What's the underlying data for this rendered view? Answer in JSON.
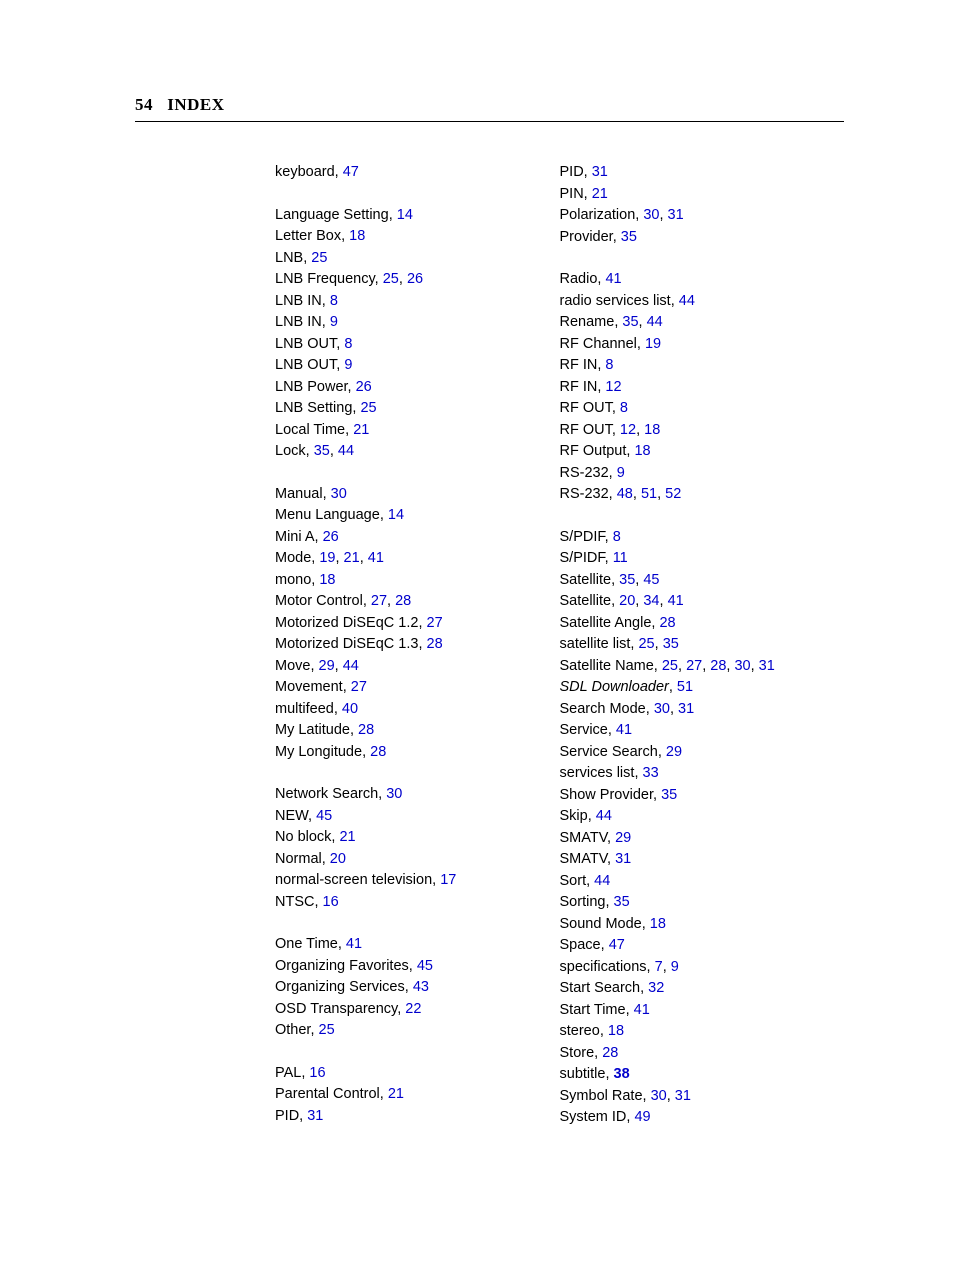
{
  "header": {
    "page_number": "54",
    "title": "INDEX"
  },
  "left_groups": [
    [
      {
        "term": "keyboard",
        "refs": [
          "47"
        ]
      }
    ],
    [
      {
        "term": "Language Setting",
        "refs": [
          "14"
        ]
      },
      {
        "term": "Letter Box",
        "refs": [
          "18"
        ]
      },
      {
        "term": "LNB",
        "refs": [
          "25"
        ]
      },
      {
        "term": "LNB Frequency",
        "refs": [
          "25",
          "26"
        ]
      },
      {
        "term": "LNB IN",
        "refs": [
          "8"
        ]
      },
      {
        "term": "LNB IN",
        "refs": [
          "9"
        ]
      },
      {
        "term": "LNB OUT",
        "refs": [
          "8"
        ]
      },
      {
        "term": "LNB OUT",
        "refs": [
          "9"
        ]
      },
      {
        "term": "LNB Power",
        "refs": [
          "26"
        ]
      },
      {
        "term": "LNB Setting",
        "refs": [
          "25"
        ]
      },
      {
        "term": "Local Time",
        "refs": [
          "21"
        ]
      },
      {
        "term": "Lock",
        "refs": [
          "35",
          "44"
        ]
      }
    ],
    [
      {
        "term": "Manual",
        "refs": [
          "30"
        ]
      },
      {
        "term": "Menu Language",
        "refs": [
          "14"
        ]
      },
      {
        "term": "Mini A",
        "refs": [
          "26"
        ]
      },
      {
        "term": "Mode",
        "refs": [
          "19",
          "21",
          "41"
        ]
      },
      {
        "term": "mono",
        "refs": [
          "18"
        ]
      },
      {
        "term": "Motor Control",
        "refs": [
          "27",
          "28"
        ]
      },
      {
        "term": "Motorized DiSEqC 1.2",
        "refs": [
          "27"
        ]
      },
      {
        "term": "Motorized DiSEqC 1.3",
        "refs": [
          "28"
        ]
      },
      {
        "term": "Move",
        "refs": [
          "29",
          "44"
        ]
      },
      {
        "term": "Movement",
        "refs": [
          "27"
        ]
      },
      {
        "term": "multifeed",
        "refs": [
          "40"
        ]
      },
      {
        "term": "My Latitude",
        "refs": [
          "28"
        ]
      },
      {
        "term": "My Longitude",
        "refs": [
          "28"
        ]
      }
    ],
    [
      {
        "term": "Network Search",
        "refs": [
          "30"
        ]
      },
      {
        "term": "NEW",
        "refs": [
          "45"
        ]
      },
      {
        "term": "No block",
        "refs": [
          "21"
        ]
      },
      {
        "term": "Normal",
        "refs": [
          "20"
        ]
      },
      {
        "term": "normal-screen television",
        "refs": [
          "17"
        ]
      },
      {
        "term": "NTSC",
        "refs": [
          "16"
        ]
      }
    ],
    [
      {
        "term": "One Time",
        "refs": [
          "41"
        ]
      },
      {
        "term": "Organizing Favorites",
        "refs": [
          "45"
        ]
      },
      {
        "term": "Organizing Services",
        "refs": [
          "43"
        ]
      },
      {
        "term": "OSD Transparency",
        "refs": [
          "22"
        ]
      },
      {
        "term": "Other",
        "refs": [
          "25"
        ]
      }
    ],
    [
      {
        "term": "PAL",
        "refs": [
          "16"
        ]
      },
      {
        "term": "Parental Control",
        "refs": [
          "21"
        ]
      },
      {
        "term": "PID",
        "refs": [
          "31"
        ]
      }
    ]
  ],
  "right_groups": [
    [
      {
        "term": "PID",
        "refs": [
          "31"
        ]
      },
      {
        "term": "PIN",
        "refs": [
          "21"
        ]
      },
      {
        "term": "Polarization",
        "refs": [
          "30",
          "31"
        ]
      },
      {
        "term": "Provider",
        "refs": [
          "35"
        ]
      }
    ],
    [
      {
        "term": "Radio",
        "refs": [
          "41"
        ]
      },
      {
        "term": "radio services list",
        "refs": [
          "44"
        ]
      },
      {
        "term": "Rename",
        "refs": [
          "35",
          "44"
        ]
      },
      {
        "term": "RF Channel",
        "refs": [
          "19"
        ]
      },
      {
        "term": "RF IN",
        "refs": [
          "8"
        ]
      },
      {
        "term": "RF IN",
        "refs": [
          "12"
        ]
      },
      {
        "term": "RF OUT",
        "refs": [
          "8"
        ]
      },
      {
        "term": "RF OUT",
        "refs": [
          "12",
          "18"
        ]
      },
      {
        "term": "RF Output",
        "refs": [
          "18"
        ]
      },
      {
        "term": "RS-232",
        "refs": [
          "9"
        ]
      },
      {
        "term": "RS-232",
        "refs": [
          "48",
          "51",
          "52"
        ]
      }
    ],
    [
      {
        "term": "S/PDIF",
        "refs": [
          "8"
        ]
      },
      {
        "term": "S/PIDF",
        "refs": [
          "11"
        ]
      },
      {
        "term": "Satellite",
        "refs": [
          "35",
          "45"
        ]
      },
      {
        "term": "Satellite",
        "refs": [
          "20",
          "34",
          "41"
        ]
      },
      {
        "term": "Satellite Angle",
        "refs": [
          "28"
        ]
      },
      {
        "term": "satellite list",
        "refs": [
          "25",
          "35"
        ]
      },
      {
        "term": "Satellite Name",
        "refs": [
          "25",
          "27",
          "28",
          "30",
          "31"
        ]
      },
      {
        "term": "SDL Downloader",
        "italic": true,
        "refs": [
          "51"
        ]
      },
      {
        "term": "Search Mode",
        "refs": [
          "30",
          "31"
        ]
      },
      {
        "term": "Service",
        "refs": [
          "41"
        ]
      },
      {
        "term": "Service Search",
        "refs": [
          "29"
        ]
      },
      {
        "term": "services list",
        "refs": [
          "33"
        ]
      },
      {
        "term": "Show Provider",
        "refs": [
          "35"
        ]
      },
      {
        "term": "Skip",
        "refs": [
          "44"
        ]
      },
      {
        "term": "SMATV",
        "refs": [
          "29"
        ]
      },
      {
        "term": "SMATV",
        "refs": [
          "31"
        ]
      },
      {
        "term": "Sort",
        "refs": [
          "44"
        ]
      },
      {
        "term": "Sorting",
        "refs": [
          "35"
        ]
      },
      {
        "term": "Sound Mode",
        "refs": [
          "18"
        ]
      },
      {
        "term": "Space",
        "refs": [
          "47"
        ]
      },
      {
        "term": "specifications",
        "refs": [
          "7",
          "9"
        ]
      },
      {
        "term": "Start Search",
        "refs": [
          "32"
        ]
      },
      {
        "term": "Start Time",
        "refs": [
          "41"
        ]
      },
      {
        "term": "stereo",
        "refs": [
          "18"
        ]
      },
      {
        "term": "Store",
        "refs": [
          "28"
        ]
      },
      {
        "term": "subtitle",
        "refs": [
          "38"
        ],
        "bold_refs": true
      },
      {
        "term": "Symbol Rate",
        "refs": [
          "30",
          "31"
        ]
      },
      {
        "term": "System ID",
        "refs": [
          "49"
        ]
      }
    ]
  ]
}
